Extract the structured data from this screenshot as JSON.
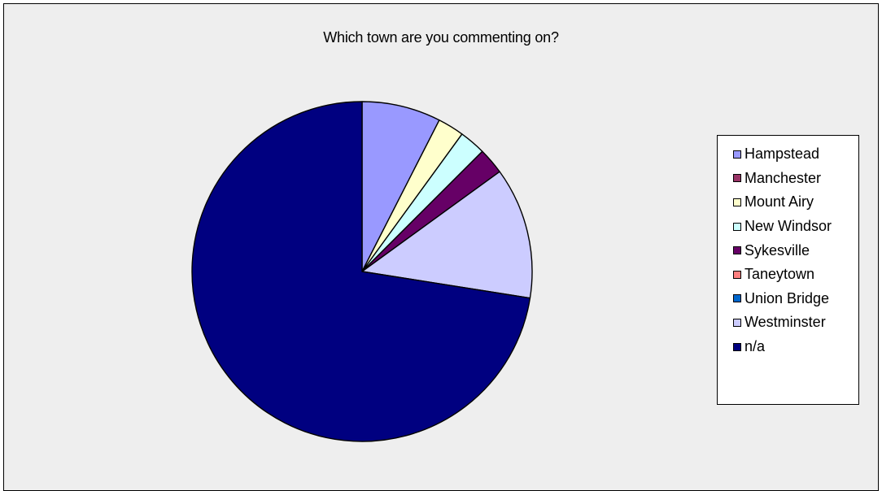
{
  "chart_data": {
    "type": "pie",
    "title": "Which town are you commenting on?",
    "categories": [
      "Hampstead",
      "Manchester",
      "Mount Airy",
      "New Windsor",
      "Sykesville",
      "Taneytown",
      "Union Bridge",
      "Westminster",
      "n/a"
    ],
    "values": [
      7.5,
      0,
      2.5,
      2.5,
      2.5,
      0,
      0,
      12.5,
      72.5
    ],
    "colors": [
      "#9999ff",
      "#993366",
      "#ffffcc",
      "#ccffff",
      "#660066",
      "#ff8080",
      "#0066cc",
      "#ccccff",
      "#000080"
    ],
    "start_angle_deg": 0,
    "direction": "clockwise",
    "legend_position": "right"
  }
}
